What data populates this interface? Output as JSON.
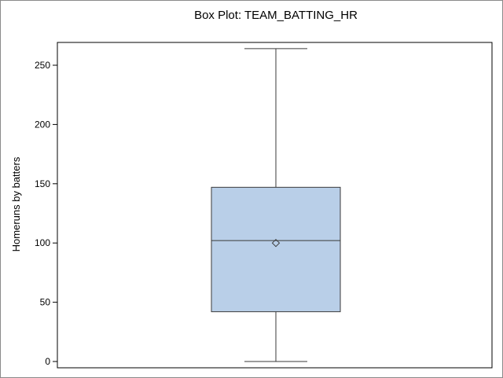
{
  "chart_data": {
    "type": "box",
    "title": "Box Plot: TEAM_BATTING_HR",
    "xlabel": "",
    "ylabel": "Homeruns by batters",
    "ylim": [
      0,
      270
    ],
    "yticks": [
      0,
      50,
      100,
      150,
      200,
      250
    ],
    "grid": false,
    "legend": "none",
    "box": {
      "min": 0,
      "q1": 42,
      "median": 102,
      "mean": 100,
      "q3": 147,
      "max": 264
    },
    "colors": {
      "box_fill": "#b9cfe8",
      "box_stroke": "#3a3a3a",
      "axis": "#000000"
    }
  }
}
